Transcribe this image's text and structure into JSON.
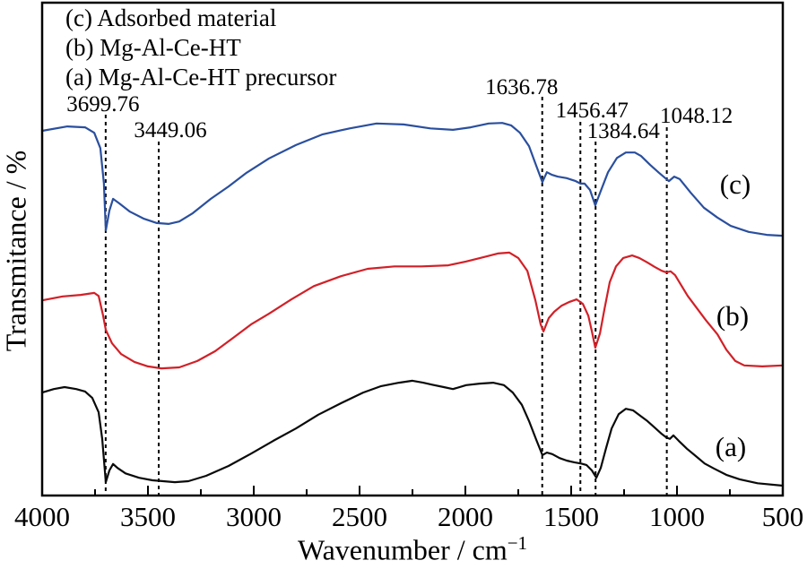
{
  "figure": {
    "legend_lines": [
      "(c) Adsorbed material",
      "(b) Mg-Al-Ce-HT",
      "(a) Mg-Al-Ce-HT precursor"
    ],
    "xlabel_base": "Wavenumber / cm",
    "xlabel_sup": "−1",
    "ylabel": "Transmitance / %"
  },
  "colors": {
    "background": "#ffffff",
    "axis": "#000000",
    "annotation_line": "#000000",
    "curve_a": "#0a0a0a",
    "curve_b": "#d22027",
    "curve_c": "#2a4f9e"
  },
  "chart_data": {
    "type": "line",
    "title": "",
    "xlabel": "Wavenumber / cm⁻¹",
    "ylabel": "Transmitance / %",
    "x_axis": {
      "max": 4000,
      "min": 500,
      "direction": "decreasing left to right",
      "major_ticks": [
        4000,
        3500,
        3000,
        2500,
        2000,
        1500,
        1000,
        500
      ],
      "minor_tick_step": 250
    },
    "y_axis": {
      "tick_labels": "none",
      "scale": "relative transmittance, curves offset-stacked; y values below are percent of plot height above bottom axis"
    },
    "grid": false,
    "legend_position": "top-left inside plot",
    "peak_annotations": [
      {
        "label": "3699.76",
        "wavenumber": 3699.76
      },
      {
        "label": "3449.06",
        "wavenumber": 3449.06
      },
      {
        "label": "1636.78",
        "wavenumber": 1636.78
      },
      {
        "label": "1456.47",
        "wavenumber": 1456.47
      },
      {
        "label": "1384.64",
        "wavenumber": 1384.64
      },
      {
        "label": "1048.12",
        "wavenumber": 1048.12
      }
    ],
    "series": [
      {
        "id": "c",
        "name": "Adsorbed material",
        "curve_label": "(c)",
        "color": "#2a4f9e",
        "points": [
          [
            4000,
            74.0
          ],
          [
            3881,
            74.9
          ],
          [
            3797,
            74.7
          ],
          [
            3754,
            73.6
          ],
          [
            3725,
            70.5
          ],
          [
            3708,
            63.3
          ],
          [
            3699,
            53.8
          ],
          [
            3682,
            57.8
          ],
          [
            3665,
            60.2
          ],
          [
            3636,
            59.3
          ],
          [
            3585,
            57.6
          ],
          [
            3521,
            56.2
          ],
          [
            3458,
            55.3
          ],
          [
            3403,
            55.1
          ],
          [
            3352,
            55.6
          ],
          [
            3288,
            57.3
          ],
          [
            3203,
            60.2
          ],
          [
            3119,
            62.7
          ],
          [
            3034,
            65.5
          ],
          [
            2928,
            68.4
          ],
          [
            2801,
            71.1
          ],
          [
            2674,
            73.3
          ],
          [
            2547,
            74.5
          ],
          [
            2420,
            75.5
          ],
          [
            2292,
            75.3
          ],
          [
            2165,
            74.5
          ],
          [
            2059,
            74.2
          ],
          [
            1975,
            74.7
          ],
          [
            1890,
            75.5
          ],
          [
            1826,
            75.6
          ],
          [
            1784,
            75.1
          ],
          [
            1742,
            73.6
          ],
          [
            1699,
            70.9
          ],
          [
            1665,
            66.9
          ],
          [
            1636,
            63.6
          ],
          [
            1615,
            65.6
          ],
          [
            1593,
            65.1
          ],
          [
            1564,
            64.7
          ],
          [
            1521,
            64.4
          ],
          [
            1479,
            63.8
          ],
          [
            1456,
            63.3
          ],
          [
            1437,
            63.3
          ],
          [
            1411,
            62.0
          ],
          [
            1386,
            58.9
          ],
          [
            1360,
            61.8
          ],
          [
            1326,
            65.6
          ],
          [
            1284,
            68.5
          ],
          [
            1242,
            69.6
          ],
          [
            1199,
            69.6
          ],
          [
            1170,
            68.9
          ],
          [
            1127,
            67.1
          ],
          [
            1085,
            65.5
          ],
          [
            1055,
            64.4
          ],
          [
            1038,
            63.8
          ],
          [
            1013,
            64.7
          ],
          [
            987,
            64.2
          ],
          [
            936,
            61.5
          ],
          [
            873,
            58.4
          ],
          [
            809,
            56.4
          ],
          [
            746,
            54.7
          ],
          [
            661,
            53.5
          ],
          [
            576,
            52.9
          ],
          [
            500,
            52.7
          ]
        ]
      },
      {
        "id": "b",
        "name": "Mg-Al-Ce-HT",
        "curve_label": "(b)",
        "color": "#d22027",
        "points": [
          [
            4000,
            39.6
          ],
          [
            3903,
            40.4
          ],
          [
            3818,
            40.7
          ],
          [
            3754,
            41.1
          ],
          [
            3733,
            40.5
          ],
          [
            3712,
            36.5
          ],
          [
            3699,
            33.6
          ],
          [
            3670,
            30.9
          ],
          [
            3627,
            28.7
          ],
          [
            3564,
            27.1
          ],
          [
            3500,
            26.2
          ],
          [
            3436,
            25.8
          ],
          [
            3352,
            26.0
          ],
          [
            3267,
            27.3
          ],
          [
            3182,
            29.3
          ],
          [
            3097,
            32.0
          ],
          [
            3013,
            34.7
          ],
          [
            2928,
            36.9
          ],
          [
            2822,
            39.8
          ],
          [
            2716,
            42.5
          ],
          [
            2589,
            44.5
          ],
          [
            2462,
            46.0
          ],
          [
            2335,
            46.5
          ],
          [
            2208,
            46.5
          ],
          [
            2081,
            46.7
          ],
          [
            1996,
            47.5
          ],
          [
            1911,
            48.4
          ],
          [
            1847,
            49.1
          ],
          [
            1792,
            49.3
          ],
          [
            1750,
            48.2
          ],
          [
            1707,
            45.6
          ],
          [
            1669,
            39.6
          ],
          [
            1644,
            34.7
          ],
          [
            1631,
            33.3
          ],
          [
            1606,
            36.0
          ],
          [
            1580,
            37.3
          ],
          [
            1546,
            38.5
          ],
          [
            1508,
            39.3
          ],
          [
            1474,
            39.8
          ],
          [
            1445,
            38.9
          ],
          [
            1419,
            36.5
          ],
          [
            1402,
            33.3
          ],
          [
            1386,
            30.0
          ],
          [
            1364,
            32.9
          ],
          [
            1343,
            37.8
          ],
          [
            1318,
            43.3
          ],
          [
            1288,
            46.5
          ],
          [
            1254,
            48.2
          ],
          [
            1212,
            48.7
          ],
          [
            1178,
            48.2
          ],
          [
            1140,
            47.3
          ],
          [
            1106,
            46.4
          ],
          [
            1072,
            45.6
          ],
          [
            1051,
            45.3
          ],
          [
            1030,
            45.5
          ],
          [
            1009,
            44.7
          ],
          [
            949,
            40.5
          ],
          [
            864,
            35.6
          ],
          [
            809,
            32.7
          ],
          [
            767,
            29.6
          ],
          [
            724,
            27.3
          ],
          [
            682,
            26.4
          ],
          [
            597,
            26.2
          ],
          [
            500,
            26.4
          ]
        ]
      },
      {
        "id": "a",
        "name": "Mg-Al-Ce-HT precursor",
        "curve_label": "(a)",
        "color": "#0a0a0a",
        "points": [
          [
            4000,
            20.9
          ],
          [
            3945,
            21.6
          ],
          [
            3894,
            22.0
          ],
          [
            3839,
            21.6
          ],
          [
            3797,
            21.1
          ],
          [
            3763,
            19.8
          ],
          [
            3733,
            16.9
          ],
          [
            3716,
            11.5
          ],
          [
            3699,
            2.7
          ],
          [
            3682,
            5.1
          ],
          [
            3665,
            6.4
          ],
          [
            3644,
            5.6
          ],
          [
            3606,
            4.5
          ],
          [
            3542,
            3.6
          ],
          [
            3479,
            3.1
          ],
          [
            3428,
            2.9
          ],
          [
            3373,
            2.7
          ],
          [
            3309,
            2.9
          ],
          [
            3225,
            4.0
          ],
          [
            3119,
            6.0
          ],
          [
            3013,
            8.5
          ],
          [
            2907,
            11.1
          ],
          [
            2801,
            13.6
          ],
          [
            2695,
            16.4
          ],
          [
            2589,
            18.7
          ],
          [
            2483,
            20.9
          ],
          [
            2398,
            22.2
          ],
          [
            2314,
            22.9
          ],
          [
            2250,
            23.3
          ],
          [
            2199,
            22.9
          ],
          [
            2157,
            22.5
          ],
          [
            2102,
            22.0
          ],
          [
            2059,
            21.6
          ],
          [
            1996,
            22.4
          ],
          [
            1932,
            22.7
          ],
          [
            1869,
            22.9
          ],
          [
            1818,
            22.4
          ],
          [
            1776,
            20.9
          ],
          [
            1733,
            18.4
          ],
          [
            1699,
            15.1
          ],
          [
            1665,
            11.3
          ],
          [
            1636,
            8.2
          ],
          [
            1615,
            8.7
          ],
          [
            1589,
            8.4
          ],
          [
            1555,
            7.6
          ],
          [
            1521,
            7.1
          ],
          [
            1483,
            6.7
          ],
          [
            1453,
            6.5
          ],
          [
            1428,
            6.2
          ],
          [
            1402,
            5.1
          ],
          [
            1381,
            3.6
          ],
          [
            1360,
            5.6
          ],
          [
            1335,
            9.6
          ],
          [
            1309,
            13.6
          ],
          [
            1276,
            16.5
          ],
          [
            1242,
            17.6
          ],
          [
            1208,
            17.3
          ],
          [
            1174,
            16.2
          ],
          [
            1140,
            15.1
          ],
          [
            1106,
            13.8
          ],
          [
            1072,
            12.5
          ],
          [
            1051,
            11.8
          ],
          [
            1034,
            11.5
          ],
          [
            1017,
            12.2
          ],
          [
            992,
            11.1
          ],
          [
            953,
            9.5
          ],
          [
            911,
            8.0
          ],
          [
            869,
            6.5
          ],
          [
            826,
            5.5
          ],
          [
            767,
            4.2
          ],
          [
            704,
            3.3
          ],
          [
            619,
            2.5
          ],
          [
            500,
            2.0
          ]
        ]
      }
    ]
  }
}
